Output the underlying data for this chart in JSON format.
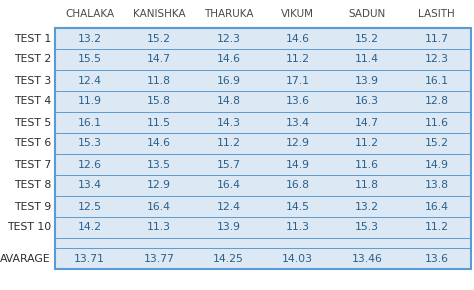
{
  "columns": [
    "CHALAKA",
    "KANISHKA",
    "THARUKA",
    "VIKUM",
    "SADUN",
    "LASITH"
  ],
  "rows": [
    "TEST 1",
    "TEST 2",
    "TEST 3",
    "TEST 4",
    "TEST 5",
    "TEST 6",
    "TEST 7",
    "TEST 8",
    "TEST 9",
    "TEST 10"
  ],
  "avg_row": "AVARAGE",
  "data": [
    [
      13.2,
      15.2,
      12.3,
      14.6,
      15.2,
      11.7
    ],
    [
      15.5,
      14.7,
      14.6,
      11.2,
      11.4,
      12.3
    ],
    [
      12.4,
      11.8,
      16.9,
      17.1,
      13.9,
      16.1
    ],
    [
      11.9,
      15.8,
      14.8,
      13.6,
      16.3,
      12.8
    ],
    [
      16.1,
      11.5,
      14.3,
      13.4,
      14.7,
      11.6
    ],
    [
      15.3,
      14.6,
      11.2,
      12.9,
      11.2,
      15.2
    ],
    [
      12.6,
      13.5,
      15.7,
      14.9,
      11.6,
      14.9
    ],
    [
      13.4,
      12.9,
      16.4,
      16.8,
      11.8,
      13.8
    ],
    [
      12.5,
      16.4,
      12.4,
      14.5,
      13.2,
      16.4
    ],
    [
      14.2,
      11.3,
      13.9,
      11.3,
      15.3,
      11.2
    ]
  ],
  "avg_data": [
    13.71,
    13.77,
    14.25,
    14.03,
    13.46,
    13.6
  ],
  "row_bg": "#dce9f5",
  "gap_bg": "#dce9f5",
  "border_color": "#5b9bd5",
  "header_text_color": "#4a4a4a",
  "data_text_color": "#2c5f8a",
  "row_label_color": "#2c2c2c",
  "avg_label_color": "#2c2c2c",
  "font_size_header": 7.5,
  "font_size_data": 7.8,
  "font_size_row": 7.8
}
